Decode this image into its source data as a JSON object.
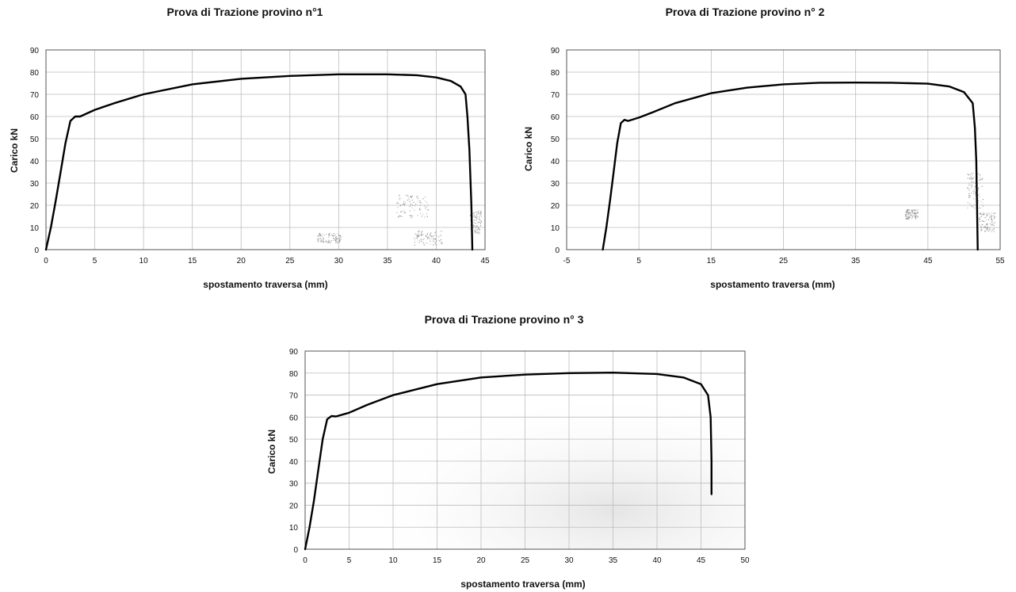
{
  "chart_data": [
    {
      "type": "line",
      "title": "Prova di Trazione provino n°1",
      "xlabel": "spostamento traversa (mm)",
      "ylabel": "Carico kN",
      "xlim": [
        0,
        45
      ],
      "ylim": [
        0,
        90
      ],
      "xticks": [
        "0",
        "5",
        "10",
        "15",
        "20",
        "25",
        "30",
        "35",
        "40",
        "45"
      ],
      "yticks": [
        "0",
        "10",
        "20",
        "30",
        "40",
        "50",
        "60",
        "70",
        "80",
        "90"
      ],
      "grid": true,
      "series": [
        {
          "x": [
            0,
            0.5,
            1,
            1.5,
            2,
            2.5,
            3,
            3.5,
            5,
            7,
            10,
            15,
            20,
            25,
            30,
            35,
            38,
            40,
            41.5,
            42.5,
            43,
            43.2,
            43.4,
            43.6,
            43.7
          ],
          "y": [
            0,
            10,
            22,
            35,
            48,
            58,
            60,
            60,
            63,
            66,
            70,
            74.5,
            77,
            78.3,
            79,
            79,
            78.6,
            77.6,
            76,
            73.5,
            70,
            60,
            45,
            20,
            0
          ]
        }
      ]
    },
    {
      "type": "line",
      "title": "Prova di Trazione provino n° 2",
      "xlabel": "spostamento traversa (mm)",
      "ylabel": "Carico kN",
      "xlim": [
        -5,
        55
      ],
      "ylim": [
        0,
        90
      ],
      "xticks": [
        "-5",
        "5",
        "15",
        "25",
        "35",
        "45",
        "55"
      ],
      "yticks": [
        "0",
        "10",
        "20",
        "30",
        "40",
        "50",
        "60",
        "70",
        "80",
        "90"
      ],
      "grid": true,
      "series": [
        {
          "x": [
            0,
            0.5,
            1,
            1.5,
            2,
            2.5,
            3,
            3.5,
            5,
            7,
            10,
            15,
            20,
            25,
            30,
            35,
            40,
            45,
            48,
            50,
            51.2,
            51.5,
            51.7,
            51.8,
            51.9
          ],
          "y": [
            0,
            10,
            22,
            35,
            48,
            57,
            58.5,
            58,
            59.5,
            62,
            66,
            70.5,
            73,
            74.5,
            75.2,
            75.3,
            75.2,
            74.8,
            73.5,
            71,
            66,
            55,
            40,
            20,
            0
          ]
        }
      ]
    },
    {
      "type": "line",
      "title": "Prova di Trazione provino n° 3",
      "xlabel": "spostamento traversa (mm)",
      "ylabel": "Carico kN",
      "xlim": [
        0,
        50
      ],
      "ylim": [
        0,
        90
      ],
      "xticks": [
        "0",
        "5",
        "10",
        "15",
        "20",
        "25",
        "30",
        "35",
        "40",
        "45",
        "50"
      ],
      "yticks": [
        "0",
        "10",
        "20",
        "30",
        "40",
        "50",
        "60",
        "70",
        "80",
        "90"
      ],
      "grid": true,
      "series": [
        {
          "x": [
            0,
            0.5,
            1,
            1.5,
            2,
            2.5,
            3,
            3.5,
            5,
            7,
            10,
            15,
            20,
            25,
            30,
            35,
            40,
            43,
            45,
            45.8,
            46.1,
            46.2,
            46.2
          ],
          "y": [
            0,
            10,
            22,
            36,
            50,
            59,
            60.5,
            60.3,
            62,
            65.5,
            70,
            75,
            78,
            79.3,
            80,
            80.2,
            79.6,
            78,
            75,
            70,
            60,
            40,
            25
          ]
        }
      ]
    }
  ]
}
